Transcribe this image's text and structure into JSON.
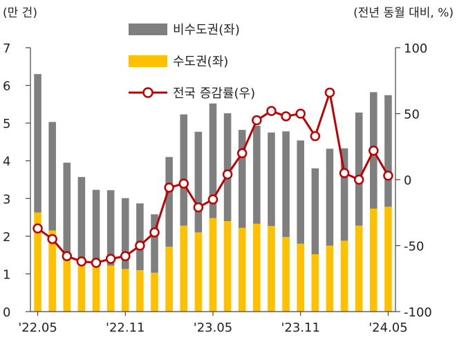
{
  "chart_data": {
    "type": "bar+line",
    "left_unit": "(만 건)",
    "right_unit": "(전년 동월 대비, %)",
    "left_ylim": [
      0,
      7
    ],
    "left_ticks": [
      0,
      1,
      2,
      3,
      4,
      5,
      6,
      7
    ],
    "right_ylim": [
      -100,
      100
    ],
    "right_ticks": [
      -100,
      -50,
      0,
      50,
      100
    ],
    "x_tick_labels": [
      {
        "index": 0,
        "label": "'22.05"
      },
      {
        "index": 6,
        "label": "'22.11"
      },
      {
        "index": 12,
        "label": "'23.05"
      },
      {
        "index": 18,
        "label": "'23.11"
      },
      {
        "index": 24,
        "label": "'24.05"
      }
    ],
    "categories": [
      "22.05",
      "22.06",
      "22.07",
      "22.08",
      "22.09",
      "22.10",
      "22.11",
      "22.12",
      "23.01",
      "23.02",
      "23.03",
      "23.04",
      "23.05",
      "23.06",
      "23.07",
      "23.08",
      "23.09",
      "23.10",
      "23.11",
      "23.12",
      "24.01",
      "24.02",
      "24.03",
      "24.04",
      "24.05"
    ],
    "legend": [
      {
        "name": "비수도권(좌)",
        "kind": "bar",
        "color": "#7f7f7f"
      },
      {
        "name": "수도권(좌)",
        "kind": "bar",
        "color": "#ffc000"
      },
      {
        "name": "전국 증감률(우)",
        "kind": "line",
        "color": "#c00000"
      }
    ],
    "series": [
      {
        "name": "수도권(좌)",
        "axis": "left",
        "values": [
          2.63,
          2.15,
          1.45,
          1.3,
          1.3,
          1.22,
          1.13,
          1.1,
          1.03,
          1.72,
          2.28,
          2.1,
          2.48,
          2.4,
          2.22,
          2.33,
          2.27,
          1.98,
          1.8,
          1.52,
          1.75,
          1.88,
          2.28,
          2.73,
          2.78
        ]
      },
      {
        "name": "비수도권(좌)",
        "axis": "left",
        "values": [
          3.67,
          2.88,
          2.5,
          2.27,
          1.93,
          2.0,
          1.88,
          1.77,
          1.55,
          2.38,
          2.95,
          2.67,
          3.04,
          2.86,
          2.6,
          2.6,
          2.48,
          2.8,
          2.74,
          2.28,
          2.57,
          2.45,
          3.0,
          3.09,
          2.96
        ]
      },
      {
        "name": "전국 증감률(우)",
        "axis": "right",
        "values": [
          -37,
          -45,
          -58,
          -62,
          -63,
          -60,
          -58,
          -50,
          -40,
          -6,
          -3,
          -21,
          -15,
          4,
          20,
          45,
          52,
          48,
          50,
          33,
          66,
          5,
          0,
          22,
          3
        ]
      }
    ]
  }
}
